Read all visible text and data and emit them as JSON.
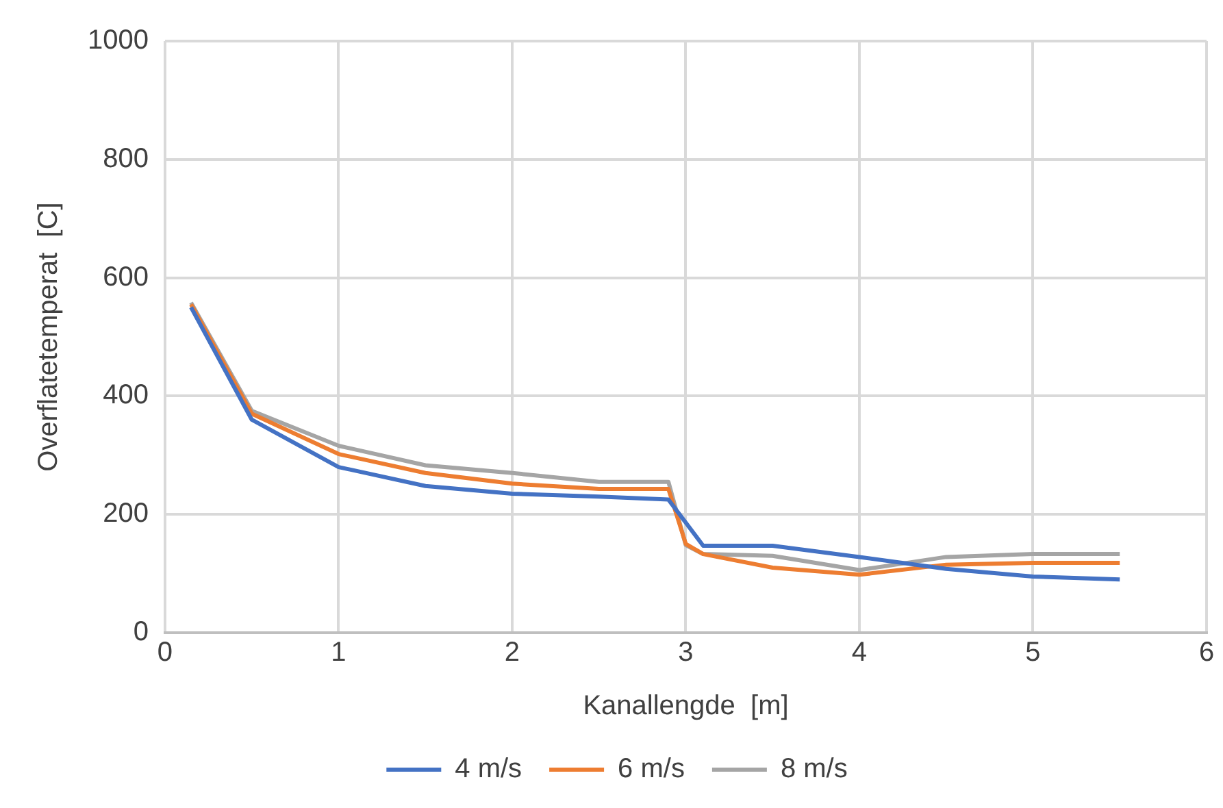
{
  "chart_data": {
    "type": "line",
    "xlabel": "Kanallengde  [m]",
    "ylabel": "Overflatetemperat  [C]",
    "xlim": [
      0,
      6
    ],
    "xticks": [
      0,
      1,
      2,
      3,
      4,
      5,
      6
    ],
    "ylim": [
      0,
      1000
    ],
    "yticks": [
      0,
      200,
      400,
      600,
      800,
      1000
    ],
    "grid": true,
    "legend": "bottom",
    "marker": "none",
    "line_style": "solid",
    "series": [
      {
        "name": "4 m/s",
        "color": "#4472c4",
        "x": [
          0.15,
          0.5,
          1,
          1.5,
          2,
          2.5,
          2.9,
          3.1,
          3.5,
          4,
          4.5,
          5,
          5.5
        ],
        "values": [
          550,
          360,
          280,
          248,
          235,
          230,
          225,
          147,
          147,
          128,
          108,
          95,
          90
        ]
      },
      {
        "name": "6 m/s",
        "color": "#ed7d31",
        "x": [
          0.15,
          0.5,
          1,
          1.5,
          2,
          2.5,
          2.9,
          3.0,
          3.1,
          3.5,
          4,
          4.5,
          5,
          5.5
        ],
        "values": [
          555,
          370,
          302,
          270,
          252,
          243,
          243,
          150,
          133,
          110,
          98,
          115,
          118,
          118
        ]
      },
      {
        "name": "8 m/s",
        "color": "#a5a5a5",
        "x": [
          0.15,
          0.5,
          1,
          1.5,
          2,
          2.5,
          2.9,
          3.0,
          3.1,
          3.5,
          4,
          4.5,
          5,
          5.5
        ],
        "values": [
          558,
          375,
          316,
          283,
          270,
          255,
          255,
          148,
          133,
          130,
          106,
          128,
          133,
          133
        ]
      }
    ]
  }
}
